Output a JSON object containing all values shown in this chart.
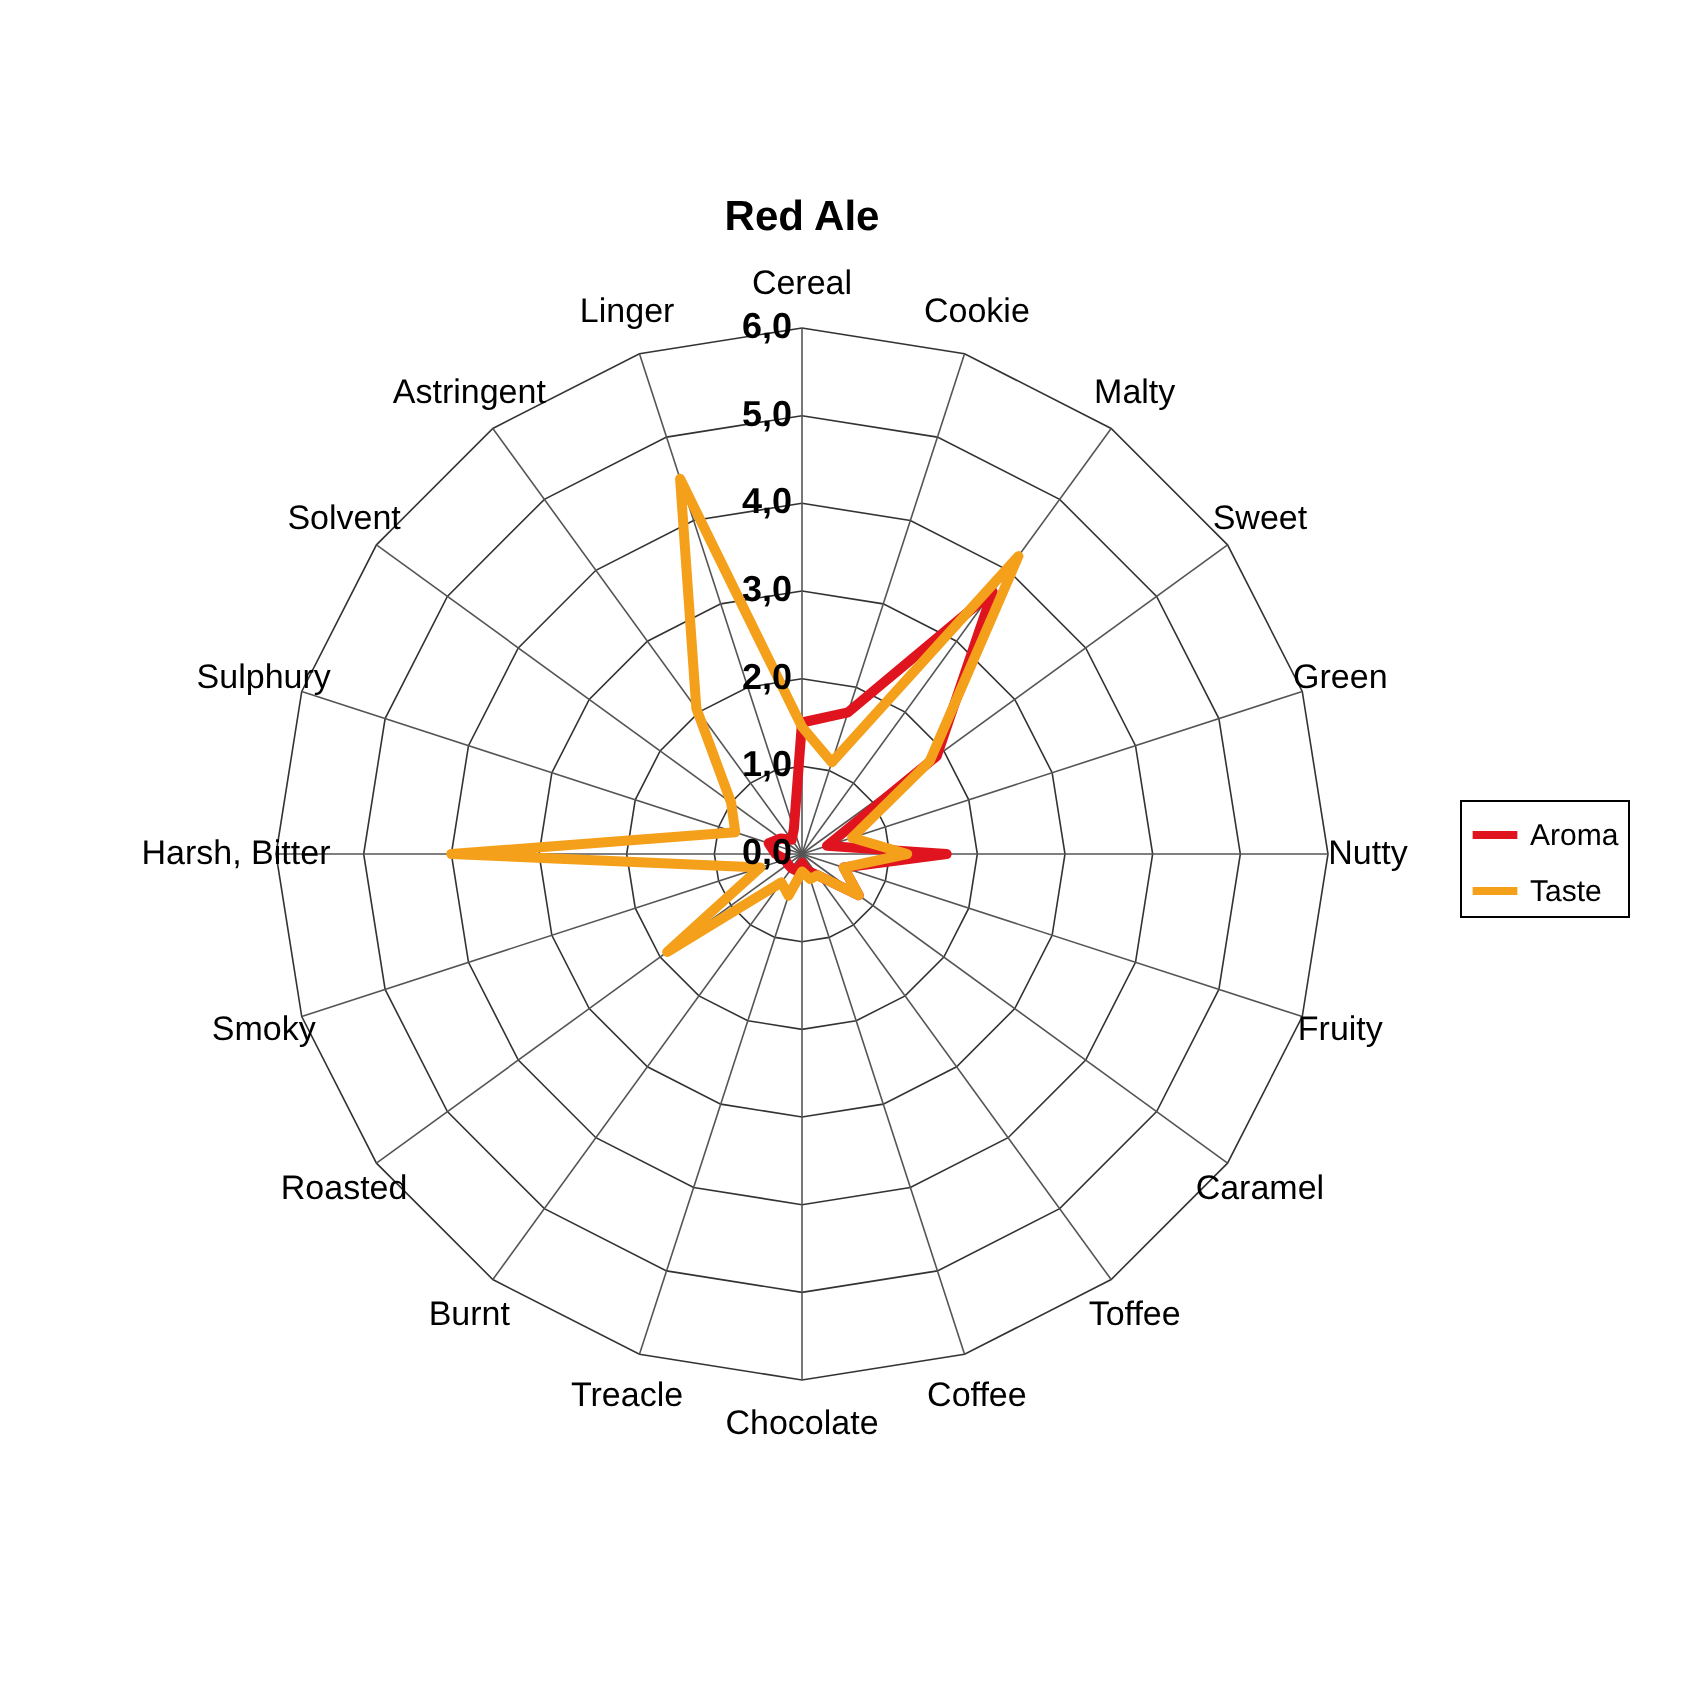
{
  "chart_data": {
    "type": "radar",
    "title": "Red Ale",
    "categories": [
      "Cereal",
      "Cookie",
      "Malty",
      "Sweet",
      "Green",
      "Nutty",
      "Fruity",
      "Caramel",
      "Toffee",
      "Coffee",
      "Chocolate",
      "Treacle",
      "Burnt",
      "Roasted",
      "Smoky",
      "Harsh, Bitter",
      "Sulphury",
      "Solvent",
      "Astringent",
      "Linger"
    ],
    "series": [
      {
        "name": "Aroma",
        "color": "#e0141e",
        "values": [
          1.5,
          1.7,
          3.7,
          1.9,
          0.3,
          1.65,
          0.5,
          0.8,
          0.3,
          0.2,
          0.1,
          0.2,
          0.2,
          0.2,
          0.2,
          0.3,
          0.4,
          0.3,
          0.2,
          0.3
        ]
      },
      {
        "name": "Taste",
        "color": "#f5a01a",
        "values": [
          1.45,
          1.1,
          4.2,
          1.8,
          0.6,
          1.2,
          0.5,
          0.8,
          0.3,
          0.3,
          0.2,
          0.5,
          0.4,
          1.9,
          0.5,
          4.0,
          0.8,
          1.0,
          2.05,
          4.5
        ]
      }
    ],
    "ylim": [
      0,
      6
    ],
    "yticks": [
      {
        "value": 0,
        "label": "0,0"
      },
      {
        "value": 1,
        "label": "1,0"
      },
      {
        "value": 2,
        "label": "2,0"
      },
      {
        "value": 3,
        "label": "3,0"
      },
      {
        "value": 4,
        "label": "4,0"
      },
      {
        "value": 5,
        "label": "5,0"
      },
      {
        "value": 6,
        "label": "6,0"
      }
    ],
    "grid": true,
    "legend": "right",
    "marker": "none"
  }
}
